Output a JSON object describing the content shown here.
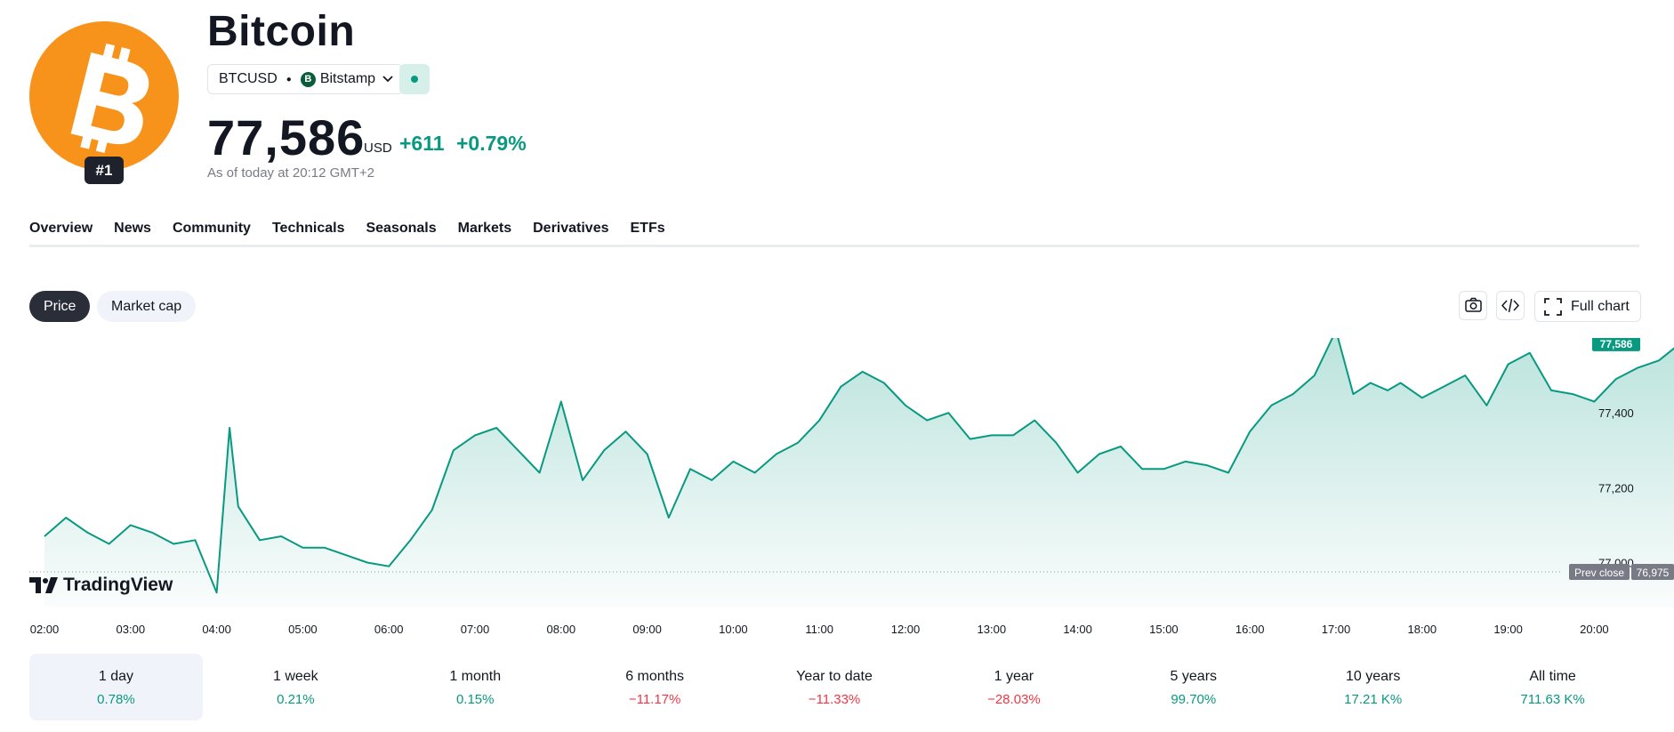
{
  "asset": {
    "name": "Bitcoin",
    "rank": "#1",
    "symbol": "BTCUSD",
    "exchange": "Bitstamp",
    "price": "77,586",
    "currency": "USD",
    "change_abs": "+611",
    "change_pct": "+0.79%",
    "as_of": "As of today at 20:12 GMT+2"
  },
  "tabs": [
    "Overview",
    "News",
    "Community",
    "Technicals",
    "Seasonals",
    "Markets",
    "Derivatives",
    "ETFs"
  ],
  "chart_controls": {
    "price_label": "Price",
    "market_cap_label": "Market cap",
    "full_chart_label": "Full chart"
  },
  "chart_data": {
    "type": "area",
    "x_ticks": [
      "02:00",
      "03:00",
      "04:00",
      "05:00",
      "06:00",
      "07:00",
      "08:00",
      "09:00",
      "10:00",
      "11:00",
      "12:00",
      "13:00",
      "14:00",
      "15:00",
      "16:00",
      "17:00",
      "18:00",
      "19:00",
      "20:00"
    ],
    "y_ticks": [
      "77,000",
      "77,200",
      "77,400"
    ],
    "ylim": [
      76880,
      77600
    ],
    "last_value": 77586,
    "last_label": "77,586",
    "prev_close": 76975,
    "prev_close_label": "76,975",
    "prev_close_text": "Prev close",
    "color": "#089981",
    "series": [
      {
        "x": [
          0,
          0.25,
          0.5,
          0.75,
          1,
          1.25,
          1.5,
          1.75,
          2,
          2.15,
          2.25,
          2.5,
          2.75,
          3,
          3.25,
          3.5,
          3.75,
          4,
          4.25,
          4.5,
          4.75,
          5,
          5.25,
          5.5,
          5.75,
          6,
          6.25,
          6.5,
          6.75,
          7,
          7.25,
          7.5,
          7.75,
          8,
          8.25,
          8.5,
          8.75,
          9,
          9.25,
          9.5,
          9.75,
          10,
          10.25,
          10.5,
          10.75,
          11,
          11.25,
          11.5,
          11.75,
          12,
          12.25,
          12.5,
          12.75,
          13,
          13.25,
          13.5,
          13.75,
          14,
          14.25,
          14.5,
          14.75,
          15,
          15.2,
          15.4,
          15.6,
          15.75,
          16,
          16.25,
          16.5,
          16.75,
          17,
          17.25,
          17.5,
          17.75,
          18,
          18.25,
          18.5,
          18.75,
          19,
          19.2
        ],
        "y": [
          77070,
          77120,
          77080,
          77050,
          77100,
          77080,
          77050,
          77060,
          76920,
          77360,
          77150,
          77060,
          77070,
          77040,
          77040,
          77020,
          77000,
          76990,
          77060,
          77140,
          77300,
          77340,
          77360,
          77300,
          77240,
          77430,
          77220,
          77300,
          77350,
          77290,
          77120,
          77250,
          77220,
          77270,
          77240,
          77290,
          77320,
          77380,
          77470,
          77510,
          77480,
          77420,
          77380,
          77400,
          77330,
          77340,
          77340,
          77380,
          77320,
          77240,
          77290,
          77310,
          77250,
          77250,
          77270,
          77260,
          77240,
          77350,
          77420,
          77450,
          77500,
          77620,
          77450,
          77480,
          77460,
          77480,
          77440,
          77470,
          77500,
          77420,
          77530,
          77560,
          77460,
          77450,
          77430,
          77490,
          77520,
          77540,
          77586,
          77586
        ]
      }
    ]
  },
  "periods": [
    {
      "label": "1 day",
      "value": "0.78%",
      "trend": "pos"
    },
    {
      "label": "1 week",
      "value": "0.21%",
      "trend": "pos"
    },
    {
      "label": "1 month",
      "value": "0.15%",
      "trend": "pos"
    },
    {
      "label": "6 months",
      "value": "−11.17%",
      "trend": "neg"
    },
    {
      "label": "Year to date",
      "value": "−11.33%",
      "trend": "neg"
    },
    {
      "label": "1 year",
      "value": "−28.03%",
      "trend": "neg"
    },
    {
      "label": "5 years",
      "value": "99.70%",
      "trend": "pos"
    },
    {
      "label": "10 years",
      "value": "17.21 K%",
      "trend": "pos"
    },
    {
      "label": "All time",
      "value": "711.63 K%",
      "trend": "pos"
    }
  ],
  "branding": {
    "tradingview": "TradingView"
  }
}
